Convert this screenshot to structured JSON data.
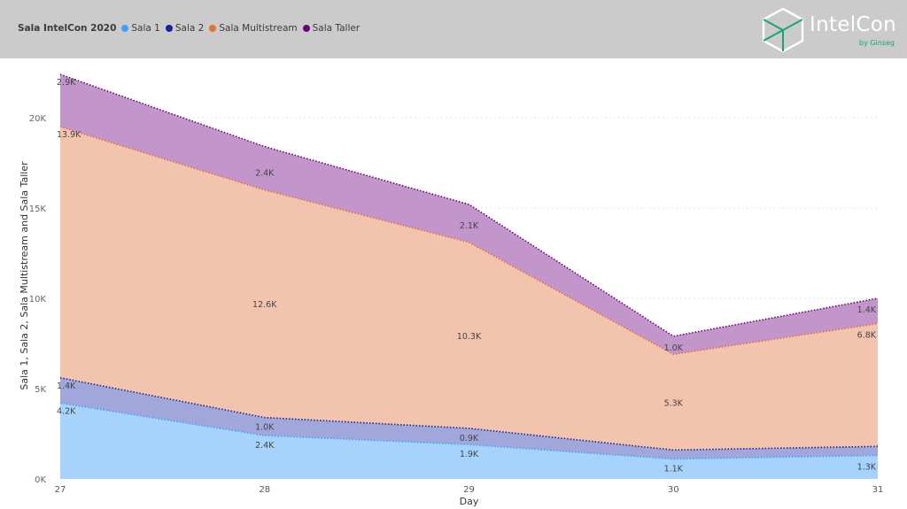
{
  "legend": {
    "title": "Sala IntelCon 2020",
    "items": [
      {
        "label": "Sala 1",
        "color": "#3da2ff"
      },
      {
        "label": "Sala 2",
        "color": "#12239e"
      },
      {
        "label": "Sala Multistream",
        "color": "#e66c37"
      },
      {
        "label": "Sala Taller",
        "color": "#6b007b"
      }
    ]
  },
  "logo": {
    "name": "IntelCon",
    "byline": "by Ginseg"
  },
  "chart_data": {
    "type": "area",
    "stacked": true,
    "categories": [
      "27",
      "28",
      "29",
      "30",
      "31"
    ],
    "xlabel": "Day",
    "ylabel": "Sala 1, Sala 2, Sala Multistream and Sala Taller",
    "ylim": [
      0,
      22500
    ],
    "yticks": [
      0,
      5000,
      10000,
      15000,
      20000
    ],
    "ytick_labels": [
      "0K",
      "5K",
      "10K",
      "15K",
      "20K"
    ],
    "grid": true,
    "series": [
      {
        "name": "Sala 1",
        "color": "#3da2ff",
        "fill": "#a5d3fc",
        "values": [
          4200,
          2400,
          1900,
          1100,
          1300
        ],
        "labels": [
          "4.2K",
          "2.4K",
          "1.9K",
          "1.1K",
          "1.3K"
        ]
      },
      {
        "name": "Sala 2",
        "color": "#12239e",
        "fill": "#a1a7da",
        "values": [
          1400,
          1000,
          900,
          500,
          500
        ],
        "labels": [
          "1.4K",
          "1.0K",
          "0.9K",
          "",
          ""
        ]
      },
      {
        "name": "Sala Multistream",
        "color": "#e66c37",
        "fill": "#f3c4ad",
        "values": [
          13900,
          12600,
          10300,
          5300,
          6800
        ],
        "labels": [
          "13.9K",
          "12.6K",
          "10.3K",
          "5.3K",
          "6.8K"
        ]
      },
      {
        "name": "Sala Taller",
        "color": "#6b007b",
        "fill": "#c396cb",
        "values": [
          2900,
          2400,
          2100,
          1000,
          1400
        ],
        "labels": [
          "2.9K",
          "2.4K",
          "2.1K",
          "1.0K",
          "1.4K"
        ]
      }
    ]
  }
}
